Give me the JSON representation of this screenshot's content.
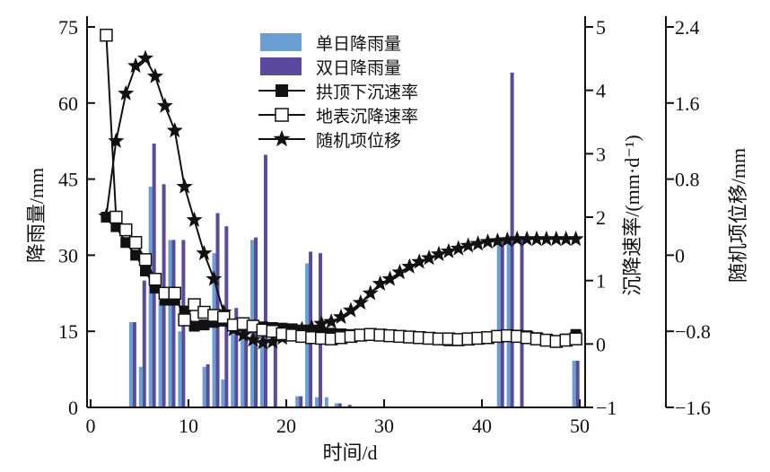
{
  "chart_data": {
    "type": "bar+line",
    "xlabel": "时间/d",
    "ylabel_left": "降雨量/mm",
    "ylabel_right1": "沉降速率/(mm·d⁻¹)",
    "ylabel_right2": "随机项位移/mm",
    "xlim": [
      0,
      50.5
    ],
    "xticks": [
      "0",
      "10",
      "20",
      "30",
      "40",
      "50"
    ],
    "ylim_left": [
      0,
      75
    ],
    "yticks_left": [
      "0",
      "15",
      "30",
      "45",
      "60",
      "75"
    ],
    "ylim_right1": [
      -1,
      5
    ],
    "yticks_right1": [
      "−1",
      "0",
      "1",
      "2",
      "3",
      "4",
      "5"
    ],
    "ylim_right2": [
      -1.6,
      2.4
    ],
    "yticks_right2": [
      "−1.6",
      "−0.8",
      "0",
      "0.8",
      "1.6",
      "2.4"
    ],
    "legend": [
      "单日降雨量",
      "双日降雨量",
      "拱顶下沉速率",
      "地表沉降速率",
      "随机项位移"
    ],
    "legend_position": "top-center",
    "colors": {
      "single": "#6a9fd4",
      "double": "#5a4a9c",
      "line": "#111111"
    },
    "line_start_day": 1.6,
    "line_step_day": 1,
    "bars": [
      {
        "day": 4.3,
        "single": 16.8,
        "double": 16.8
      },
      {
        "day": 5.3,
        "single": 8,
        "double": 25
      },
      {
        "day": 6.3,
        "single": 43.5,
        "double": 52
      },
      {
        "day": 7.3,
        "single": 21,
        "double": 44
      },
      {
        "day": 8.3,
        "single": 33,
        "double": 33
      },
      {
        "day": 9.3,
        "single": 15,
        "double": 33
      },
      {
        "day": 11.8,
        "single": 8,
        "double": 8.5
      },
      {
        "day": 12.8,
        "single": 30.4,
        "double": 38.3
      },
      {
        "day": 13.7,
        "single": 5.5,
        "double": 35.7
      },
      {
        "day": 14.7,
        "single": 15,
        "double": 19.6
      },
      {
        "day": 15.7,
        "single": 15,
        "double": 15
      },
      {
        "day": 16.7,
        "single": 33,
        "double": 33.5
      },
      {
        "day": 17.7,
        "single": 15,
        "double": 49.8
      },
      {
        "day": 18.7,
        "single": 0,
        "double": 15
      },
      {
        "day": 21.3,
        "single": 2.2,
        "double": 2.2
      },
      {
        "day": 22.3,
        "single": 28.4,
        "double": 30.7
      },
      {
        "day": 23.3,
        "single": 2,
        "double": 30.4
      },
      {
        "day": 24.3,
        "single": 2,
        "double": 0
      },
      {
        "day": 25.3,
        "single": 0.8,
        "double": 0.8
      },
      {
        "day": 26.3,
        "single": 0,
        "double": 0.5
      },
      {
        "day": 41.9,
        "single": 33,
        "double": 33
      },
      {
        "day": 42.9,
        "single": 33,
        "double": 66
      },
      {
        "day": 43.9,
        "single": 0,
        "double": 33
      },
      {
        "day": 49.6,
        "single": 9.2,
        "double": 9.2
      }
    ],
    "crown_rate": [
      2.0,
      1.85,
      1.6,
      1.4,
      1.15,
      0.88,
      0.69,
      0.69,
      0.52,
      0.28,
      0.3,
      0.34,
      0.36,
      0.3,
      0.28,
      0.27,
      0.27,
      0.26,
      0.25,
      0.24,
      0.22,
      0.2,
      0.18,
      0.17,
      0.16,
      0.15,
      0.15,
      0.14,
      0.14,
      0.13,
      0.12,
      0.11,
      0.1,
      0.08,
      0.07,
      0.05,
      0.05,
      0.06,
      0.08,
      0.1,
      0.12,
      0.13,
      0.14,
      0.13,
      0.1,
      0.06,
      0.03,
      0.08,
      0.15
    ],
    "surface_rate": [
      4.87,
      2.0,
      1.8,
      1.6,
      1.33,
      1.02,
      0.8,
      0.8,
      0.38,
      0.62,
      0.5,
      0.45,
      0.42,
      0.3,
      0.32,
      0.28,
      0.22,
      0.2,
      0.16,
      0.14,
      0.12,
      0.1,
      0.09,
      0.08,
      0.1,
      0.12,
      0.14,
      0.15,
      0.14,
      0.13,
      0.12,
      0.11,
      0.1,
      0.09,
      0.08,
      0.08,
      0.07,
      0.08,
      0.09,
      0.1,
      0.12,
      0.13,
      0.12,
      0.1,
      0.08,
      0.06,
      0.04,
      0.06,
      0.08
    ],
    "random_disp": [
      0.41,
      1.2,
      1.7,
      1.99,
      2.07,
      1.88,
      1.57,
      1.31,
      0.72,
      0.37,
      0.02,
      -0.25,
      -0.6,
      -0.78,
      -0.84,
      -0.89,
      -0.92,
      -0.91,
      -0.87,
      -0.82,
      -0.78,
      -0.76,
      -0.72,
      -0.7,
      -0.65,
      -0.58,
      -0.5,
      -0.4,
      -0.3,
      -0.25,
      -0.18,
      -0.12,
      -0.07,
      -0.03,
      0.01,
      0.04,
      0.07,
      0.1,
      0.12,
      0.14,
      0.15,
      0.16,
      0.17,
      0.17,
      0.17,
      0.17,
      0.17,
      0.17,
      0.17
    ]
  }
}
